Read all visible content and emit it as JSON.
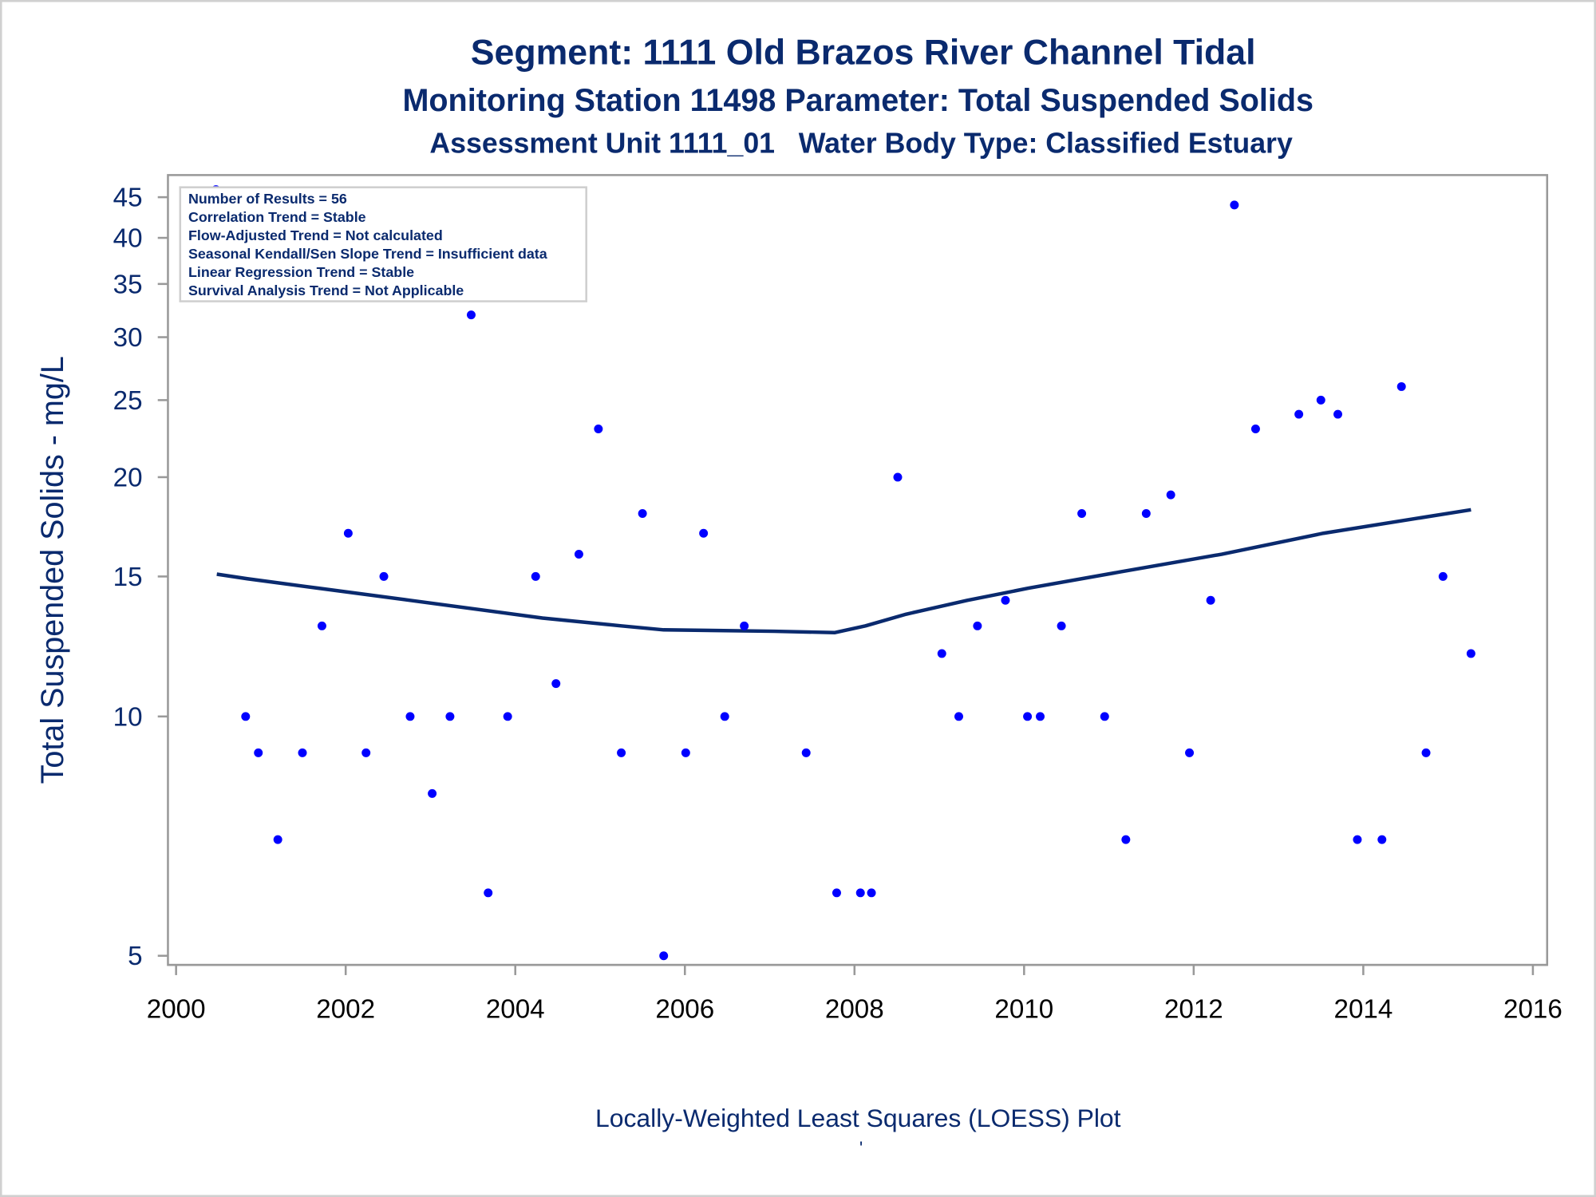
{
  "chart_data": {
    "type": "scatter",
    "title": "Segment: 1111  Old Brazos River Channel Tidal",
    "subtitle": "Monitoring Station 11498 Parameter: Total Suspended Solids",
    "subtitle2": "Assessment Unit 1111_01   Water Body Type: Classified Estuary",
    "xlabel": "",
    "ylabel": "Total Suspended Solids - mg/L",
    "footnote": "Locally-Weighted Least Squares (LOESS) Plot",
    "footnote_mark": "'",
    "xlim": [
      2000,
      2016
    ],
    "ylim": [
      5,
      45
    ],
    "yscale": "log",
    "x_ticks": [
      "2000",
      "2002",
      "2004",
      "2006",
      "2008",
      "2010",
      "2012",
      "2014",
      "2016"
    ],
    "y_ticks": [
      "5",
      "10",
      "15",
      "20",
      "25",
      "30",
      "35",
      "40",
      "45"
    ],
    "info_box": [
      "Number of Results = 56",
      "Correlation Trend = Stable",
      "Flow-Adjusted Trend = Not calculated",
      "Seasonal Kendall/Sen Slope Trend = Insufficient data",
      "Linear Regression Trend = Stable",
      "Survival Analysis Trend = Not Applicable"
    ],
    "colors": {
      "points": "#0000ff",
      "loess": "#0a2a6e",
      "text": "#0a2a6e"
    },
    "series": [
      {
        "name": "Observations",
        "points": [
          [
            2000.47,
            46
          ],
          [
            2000.82,
            10
          ],
          [
            2000.97,
            9
          ],
          [
            2001.2,
            7
          ],
          [
            2001.49,
            9
          ],
          [
            2001.72,
            13
          ],
          [
            2002.03,
            17
          ],
          [
            2002.24,
            9
          ],
          [
            2002.45,
            15
          ],
          [
            2002.76,
            10
          ],
          [
            2003.02,
            8
          ],
          [
            2003.23,
            10
          ],
          [
            2003.48,
            32
          ],
          [
            2003.68,
            6
          ],
          [
            2003.91,
            10
          ],
          [
            2004.24,
            15
          ],
          [
            2004.48,
            11
          ],
          [
            2004.75,
            16
          ],
          [
            2004.98,
            23
          ],
          [
            2005.25,
            9
          ],
          [
            2005.5,
            18
          ],
          [
            2005.75,
            5
          ],
          [
            2006.01,
            9
          ],
          [
            2006.22,
            17
          ],
          [
            2006.47,
            10
          ],
          [
            2006.7,
            13
          ],
          [
            2007.43,
            9
          ],
          [
            2007.79,
            6
          ],
          [
            2008.07,
            6
          ],
          [
            2008.2,
            6
          ],
          [
            2008.51,
            20
          ],
          [
            2009.03,
            12
          ],
          [
            2009.23,
            10
          ],
          [
            2009.45,
            13
          ],
          [
            2009.78,
            14
          ],
          [
            2010.04,
            10
          ],
          [
            2010.19,
            10
          ],
          [
            2010.44,
            13
          ],
          [
            2010.68,
            18
          ],
          [
            2010.95,
            10
          ],
          [
            2011.2,
            7
          ],
          [
            2011.44,
            18
          ],
          [
            2011.73,
            19
          ],
          [
            2011.95,
            9
          ],
          [
            2012.2,
            14
          ],
          [
            2012.48,
            44
          ],
          [
            2012.73,
            23
          ],
          [
            2013.24,
            24
          ],
          [
            2013.5,
            25
          ],
          [
            2013.7,
            24
          ],
          [
            2013.93,
            7
          ],
          [
            2014.22,
            7
          ],
          [
            2014.45,
            26
          ],
          [
            2014.74,
            9
          ],
          [
            2014.94,
            15
          ],
          [
            2015.27,
            12
          ]
        ]
      },
      {
        "name": "LOESS",
        "points": [
          [
            2000.48,
            15.1
          ],
          [
            2000.84,
            14.9
          ],
          [
            2001.68,
            14.5
          ],
          [
            2002.76,
            14.0
          ],
          [
            2004.32,
            13.3
          ],
          [
            2005.25,
            13.0
          ],
          [
            2005.75,
            12.85
          ],
          [
            2007.05,
            12.8
          ],
          [
            2007.77,
            12.75
          ],
          [
            2008.13,
            13.0
          ],
          [
            2008.61,
            13.45
          ],
          [
            2009.33,
            14.0
          ],
          [
            2010.05,
            14.5
          ],
          [
            2011.13,
            15.2
          ],
          [
            2012.33,
            16.0
          ],
          [
            2013.53,
            17.0
          ],
          [
            2015.27,
            18.2
          ]
        ]
      }
    ]
  }
}
